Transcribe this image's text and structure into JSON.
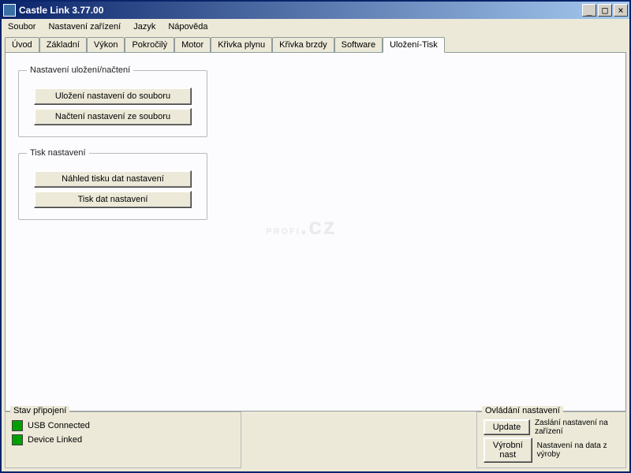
{
  "window": {
    "title": "Castle Link 3.77.00"
  },
  "menu": {
    "file": "Soubor",
    "device_settings": "Nastavení zařízení",
    "language": "Jazyk",
    "help": "Nápověda"
  },
  "tabs": {
    "intro": "Úvod",
    "basic": "Základní",
    "performance": "Výkon",
    "advanced": "Pokročilý",
    "motor": "Motor",
    "throttle_curve": "Křivka plynu",
    "brake_curve": "Křivka brzdy",
    "software": "Software",
    "save_print": "Uložení-Tisk"
  },
  "save_load_group": {
    "legend": "Nastavení uložení/načtení",
    "save_to_file": "Uložení nastavení do souboru",
    "load_from_file": "Načtení nastavení ze souboru"
  },
  "print_group": {
    "legend": "Tisk nastavení",
    "print_preview": "Náhled tisku dat nastavení",
    "print_data": "Tisk dat nastavení"
  },
  "status": {
    "legend": "Stav připojení",
    "usb": "USB Connected",
    "device": "Device Linked",
    "led_color": "#00a000"
  },
  "controls": {
    "legend": "Ovládání nastavení",
    "update_btn": "Update",
    "update_desc": "Zaslání nastavení na zařízení",
    "factory_btn": "Výrobní nast",
    "factory_desc": "Nastavení na data z výroby"
  },
  "watermark": {
    "text": "PROFI",
    "tld": ".cz"
  }
}
